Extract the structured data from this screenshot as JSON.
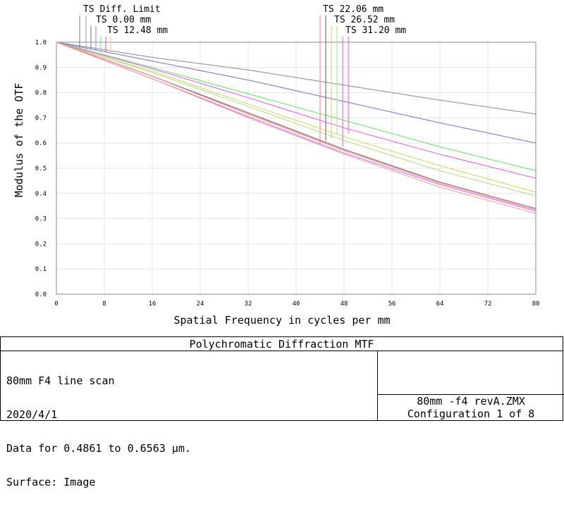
{
  "chart_data": {
    "type": "line",
    "xlabel": "Spatial Frequency in cycles per mm",
    "ylabel": "Modulus of the OTF",
    "xlim": [
      0,
      80
    ],
    "ylim": [
      0,
      1
    ],
    "x_ticks": [
      "0",
      "8",
      "16",
      "24",
      "32",
      "40",
      "48",
      "56",
      "64",
      "72",
      "80"
    ],
    "y_ticks": [
      "0.0",
      "0.1",
      "0.2",
      "0.3",
      "0.4",
      "0.5",
      "0.6",
      "0.7",
      "0.8",
      "0.9",
      "1.0"
    ],
    "grid": true,
    "legend_left": [
      "TS Diff. Limit",
      "TS 0.00 mm",
      "TS 12.48 mm"
    ],
    "legend_right": [
      "TS 22.06 mm",
      "TS 26.52 mm",
      "TS 31.20 mm"
    ],
    "series": [
      {
        "name": "TS Diff. Limit (T)",
        "color": "#7a7a7a",
        "x": [
          0,
          16,
          32,
          48,
          64,
          80
        ],
        "y": [
          1.0,
          0.94,
          0.89,
          0.83,
          0.77,
          0.715
        ]
      },
      {
        "name": "TS Diff. Limit (S)",
        "color": "#9a9ab0",
        "x": [
          0,
          16,
          32,
          48,
          64,
          80
        ],
        "y": [
          1.0,
          0.94,
          0.89,
          0.83,
          0.77,
          0.715
        ]
      },
      {
        "name": "TS 0.00 mm (T)",
        "color": "#6a6ab8",
        "x": [
          0,
          16,
          32,
          48,
          64,
          80
        ],
        "y": [
          1.0,
          0.925,
          0.85,
          0.765,
          0.68,
          0.6
        ]
      },
      {
        "name": "TS 0.00 mm (S)",
        "color": "#8888cc",
        "x": [
          0,
          16,
          32,
          48,
          64,
          80
        ],
        "y": [
          1.0,
          0.925,
          0.85,
          0.765,
          0.68,
          0.6
        ]
      },
      {
        "name": "TS 12.48 mm (T)",
        "color": "#66dd66",
        "x": [
          0,
          16,
          32,
          48,
          64,
          80
        ],
        "y": [
          1.0,
          0.9,
          0.795,
          0.69,
          0.585,
          0.49
        ]
      },
      {
        "name": "TS 12.48 mm (S)",
        "color": "#e055e0",
        "x": [
          0,
          16,
          32,
          48,
          64,
          80
        ],
        "y": [
          1.0,
          0.895,
          0.78,
          0.66,
          0.555,
          0.46
        ]
      },
      {
        "name": "TS 22.06 mm (T)",
        "color": "#d0d060",
        "x": [
          0,
          16,
          32,
          48,
          64,
          80
        ],
        "y": [
          1.0,
          0.885,
          0.755,
          0.625,
          0.51,
          0.405
        ]
      },
      {
        "name": "TS 22.06 mm (S)",
        "color": "#a8e080",
        "x": [
          0,
          16,
          32,
          48,
          64,
          80
        ],
        "y": [
          1.0,
          0.88,
          0.745,
          0.61,
          0.49,
          0.39
        ]
      },
      {
        "name": "TS 26.52 mm (T)",
        "color": "#7a5050",
        "x": [
          0,
          16,
          32,
          48,
          64,
          80
        ],
        "y": [
          1.0,
          0.865,
          0.72,
          0.575,
          0.445,
          0.34
        ]
      },
      {
        "name": "TS 26.52 mm (S)",
        "color": "#ee8080",
        "x": [
          0,
          16,
          32,
          48,
          64,
          80
        ],
        "y": [
          1.0,
          0.865,
          0.715,
          0.57,
          0.44,
          0.335
        ]
      },
      {
        "name": "TS 31.20 mm (T)",
        "color": "#e060e0",
        "x": [
          0,
          16,
          32,
          48,
          64,
          80
        ],
        "y": [
          1.0,
          0.855,
          0.705,
          0.56,
          0.435,
          0.33
        ]
      },
      {
        "name": "TS 31.20 mm (S)",
        "color": "#f0a0a0",
        "x": [
          0,
          16,
          32,
          48,
          64,
          80
        ],
        "y": [
          1.0,
          0.855,
          0.7,
          0.555,
          0.425,
          0.32
        ]
      }
    ]
  },
  "footer": {
    "title": "Polychromatic Diffraction MTF",
    "lines": [
      "80mm F4 line scan",
      "2020/4/1",
      "Data for 0.4861 to 0.6563 µm.",
      "Surface: Image"
    ],
    "file": "80mm -f4 revA.ZMX",
    "config": "Configuration 1 of 8"
  }
}
